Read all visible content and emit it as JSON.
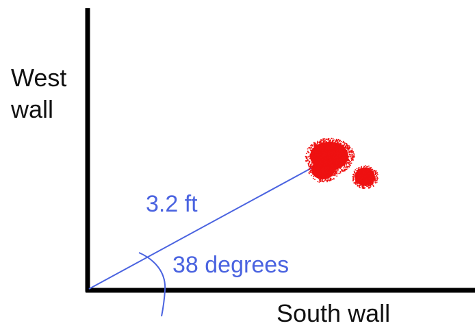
{
  "walls": {
    "west_label_line1": "West",
    "west_label_line2": "wall",
    "south_label": "South wall"
  },
  "measurement": {
    "distance_label": "3.2 ft",
    "angle_label": "38 degrees"
  },
  "colors": {
    "wall": "#000000",
    "measure": "#4a63e0",
    "stain": "#ee1111",
    "text": "#111111"
  }
}
